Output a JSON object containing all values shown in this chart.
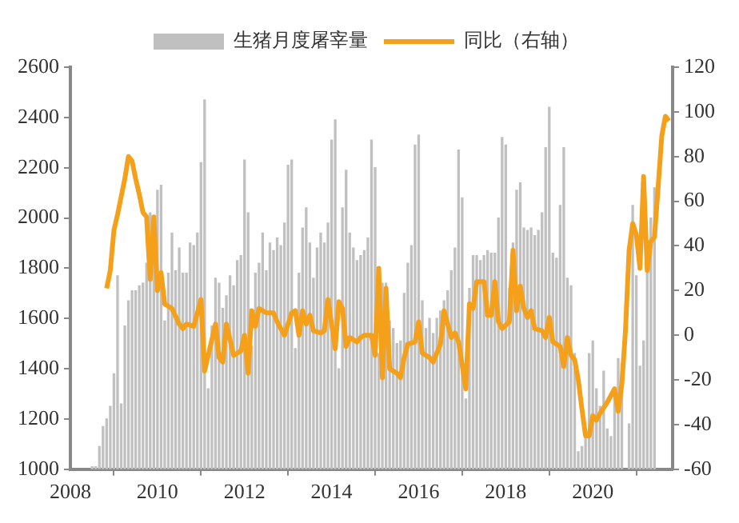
{
  "chart_data": {
    "type": "bar",
    "legend": "top",
    "xlim": [
      "2008-01",
      "2021-11"
    ],
    "xticks": [
      "2008",
      "2010",
      "2012",
      "2014",
      "2016",
      "2018",
      "2020"
    ],
    "ylim": [
      1000,
      2600
    ],
    "yticks": [
      1000,
      1200,
      1400,
      1600,
      1800,
      2000,
      2200,
      2400,
      2600
    ],
    "y2lim": [
      -60,
      120
    ],
    "y2ticks": [
      -60,
      -40,
      -20,
      0,
      20,
      40,
      60,
      80,
      100,
      120
    ],
    "series": [
      {
        "name": "生猪月度屠宰量",
        "color": "#c0c0c0",
        "x": [
          "2008-07",
          "2008-08",
          "2008-09",
          "2008-10",
          "2008-11",
          "2008-12",
          "2009-01",
          "2009-02",
          "2009-03",
          "2009-04",
          "2009-05",
          "2009-06",
          "2009-07",
          "2009-08",
          "2009-09",
          "2009-10",
          "2009-11",
          "2009-12",
          "2010-01",
          "2010-02",
          "2010-03",
          "2010-04",
          "2010-05",
          "2010-06",
          "2010-07",
          "2010-08",
          "2010-09",
          "2010-10",
          "2010-11",
          "2010-12",
          "2011-01",
          "2011-02",
          "2011-03",
          "2011-04",
          "2011-05",
          "2011-06",
          "2011-07",
          "2011-08",
          "2011-09",
          "2011-10",
          "2011-11",
          "2011-12",
          "2012-01",
          "2012-02",
          "2012-03",
          "2012-04",
          "2012-05",
          "2012-06",
          "2012-07",
          "2012-08",
          "2012-09",
          "2012-10",
          "2012-11",
          "2012-12",
          "2013-01",
          "2013-02",
          "2013-03",
          "2013-04",
          "2013-05",
          "2013-06",
          "2013-07",
          "2013-08",
          "2013-09",
          "2013-10",
          "2013-11",
          "2013-12",
          "2014-01",
          "2014-02",
          "2014-03",
          "2014-04",
          "2014-05",
          "2014-06",
          "2014-07",
          "2014-08",
          "2014-09",
          "2014-10",
          "2014-11",
          "2014-12",
          "2015-01",
          "2015-02",
          "2015-03",
          "2015-04",
          "2015-05",
          "2015-06",
          "2015-07",
          "2015-08",
          "2015-09",
          "2015-10",
          "2015-11",
          "2015-12",
          "2016-01",
          "2016-02",
          "2016-03",
          "2016-04",
          "2016-05",
          "2016-06",
          "2016-07",
          "2016-08",
          "2016-09",
          "2016-10",
          "2016-11",
          "2016-12",
          "2017-01",
          "2017-02",
          "2017-03",
          "2017-04",
          "2017-05",
          "2017-06",
          "2017-07",
          "2017-08",
          "2017-09",
          "2017-10",
          "2017-11",
          "2017-12",
          "2018-01",
          "2018-02",
          "2018-03",
          "2018-04",
          "2018-05",
          "2018-06",
          "2018-07",
          "2018-08",
          "2018-09",
          "2018-10",
          "2018-11",
          "2018-12",
          "2019-01",
          "2019-02",
          "2019-03",
          "2019-04",
          "2019-05",
          "2019-06",
          "2019-07",
          "2019-08",
          "2019-09",
          "2019-10",
          "2019-11",
          "2019-12",
          "2020-01",
          "2020-02",
          "2020-03",
          "2020-04",
          "2020-05",
          "2020-06",
          "2020-07",
          "2020-08",
          "2020-09",
          "2020-10",
          "2020-11",
          "2020-12",
          "2021-01",
          "2021-02",
          "2021-03",
          "2021-04",
          "2021-05",
          "2021-06"
        ],
        "values": [
          1010,
          1010,
          1090,
          1170,
          1200,
          1250,
          1380,
          1770,
          1260,
          1570,
          1670,
          1710,
          1710,
          1730,
          1740,
          1820,
          2020,
          1830,
          2110,
          2130,
          1590,
          1780,
          1940,
          1790,
          1880,
          1780,
          1780,
          1900,
          1890,
          1940,
          2220,
          2470,
          1320,
          1570,
          1760,
          1740,
          1640,
          1690,
          1770,
          1730,
          1830,
          1850,
          2230,
          2020,
          1490,
          1780,
          1820,
          1940,
          1790,
          1900,
          1870,
          1920,
          1890,
          1980,
          2210,
          2230,
          1480,
          1780,
          1960,
          2040,
          1900,
          1760,
          1880,
          1940,
          1900,
          1980,
          2310,
          2390,
          1400,
          2040,
          2190,
          1940,
          1880,
          1830,
          1850,
          1870,
          1920,
          2310,
          2200,
          1460,
          1740,
          1740,
          1590,
          1560,
          1500,
          1510,
          1700,
          1820,
          1890,
          2290,
          2330,
          1670,
          1560,
          1600,
          1540,
          1600,
          1630,
          1670,
          1710,
          1790,
          1880,
          2270,
          2080,
          1280,
          1720,
          1850,
          1850,
          1830,
          1850,
          1870,
          1860,
          1860,
          2000,
          2320,
          2290,
          1720,
          1900,
          2110,
          2140,
          1960,
          1950,
          1960,
          1930,
          1950,
          2020,
          2280,
          2440,
          1860,
          1840,
          2050,
          2280,
          1760,
          1730,
          1460,
          1070,
          1090,
          1130,
          1460,
          1510,
          1320,
          1250,
          1390,
          1160,
          1130,
          1290,
          1440,
          1420,
          null,
          1180,
          2050,
          1770,
          1410,
          1510,
          1800,
          2000,
          2120
        ]
      },
      {
        "name": "同比（右轴）",
        "type": "line",
        "axis": "y2",
        "color": "#f5a01a",
        "x": [
          "2008-11",
          "2008-12",
          "2009-01",
          "2009-02",
          "2009-04",
          "2009-05",
          "2009-06",
          "2009-07",
          "2009-08",
          "2009-09",
          "2009-10",
          "2009-11",
          "2009-12",
          "2010-01",
          "2010-02",
          "2010-03",
          "2010-05",
          "2010-07",
          "2010-08",
          "2010-09",
          "2010-11",
          "2011-01",
          "2011-02",
          "2011-05",
          "2011-06",
          "2011-07",
          "2011-08",
          "2011-10",
          "2011-12",
          "2012-01",
          "2012-02",
          "2012-03",
          "2012-04",
          "2012-05",
          "2012-07",
          "2012-09",
          "2012-10",
          "2012-12",
          "2013-02",
          "2013-03",
          "2013-04",
          "2013-05",
          "2013-06",
          "2013-07",
          "2013-08",
          "2013-10",
          "2013-11",
          "2013-12",
          "2014-02",
          "2014-03",
          "2014-04",
          "2014-05",
          "2014-06",
          "2014-08",
          "2014-09",
          "2014-10",
          "2014-12",
          "2015-01",
          "2015-02",
          "2015-03",
          "2015-04",
          "2015-05",
          "2015-07",
          "2015-08",
          "2015-09",
          "2015-10",
          "2015-12",
          "2016-01",
          "2016-02",
          "2016-04",
          "2016-05",
          "2016-07",
          "2016-08",
          "2016-10",
          "2016-11",
          "2016-12",
          "2017-02",
          "2017-03",
          "2017-04",
          "2017-05",
          "2017-07",
          "2017-08",
          "2017-09",
          "2017-10",
          "2017-11",
          "2017-12",
          "2018-02",
          "2018-03",
          "2018-04",
          "2018-05",
          "2018-06",
          "2018-07",
          "2018-08",
          "2018-09",
          "2018-11",
          "2018-12",
          "2019-01",
          "2019-02",
          "2019-04",
          "2019-05",
          "2019-06",
          "2019-07",
          "2019-08",
          "2019-09",
          "2019-10",
          "2019-11",
          "2019-12",
          "2020-01",
          "2020-02",
          "2020-03",
          "2020-05",
          "2020-06",
          "2020-07",
          "2020-08",
          "2020-09",
          "2020-10",
          "2020-11",
          "2020-12",
          "2021-01",
          "2021-02",
          "2021-03",
          "2021-04",
          "2021-05",
          "2021-06",
          "2021-07",
          "2021-08",
          "2021-09",
          "2021-10"
        ],
        "values": [
          21,
          29,
          47,
          54,
          70,
          80,
          78,
          70,
          63,
          55,
          53,
          25,
          53,
          20,
          28,
          14,
          12,
          5,
          3,
          5,
          4,
          16,
          -16,
          5,
          -10,
          -12,
          5,
          -9,
          -7,
          0,
          -17,
          11,
          4,
          12,
          10,
          10,
          6,
          0,
          10,
          11,
          0,
          11,
          5,
          9,
          2,
          1,
          2,
          16,
          -6,
          15,
          12,
          -5,
          -1,
          -3,
          -1,
          0,
          0,
          -9,
          30,
          -19,
          21,
          -15,
          -17,
          -19,
          -10,
          -4,
          -3,
          6,
          -8,
          -10,
          -12,
          -4,
          11,
          -1,
          1,
          -3,
          -24,
          14,
          12,
          24,
          24,
          9,
          9,
          24,
          6,
          3,
          6,
          38,
          11,
          22,
          12,
          8,
          11,
          3,
          2,
          -1,
          8,
          -3,
          -5,
          -14,
          -1,
          -9,
          -11,
          -20,
          -33,
          -45,
          -45,
          -36,
          -38,
          -35,
          -30,
          -27,
          -24,
          -34,
          -22,
          2,
          38,
          50,
          45,
          30,
          71,
          29,
          42,
          44,
          66,
          89,
          98,
          96
        ]
      }
    ]
  }
}
